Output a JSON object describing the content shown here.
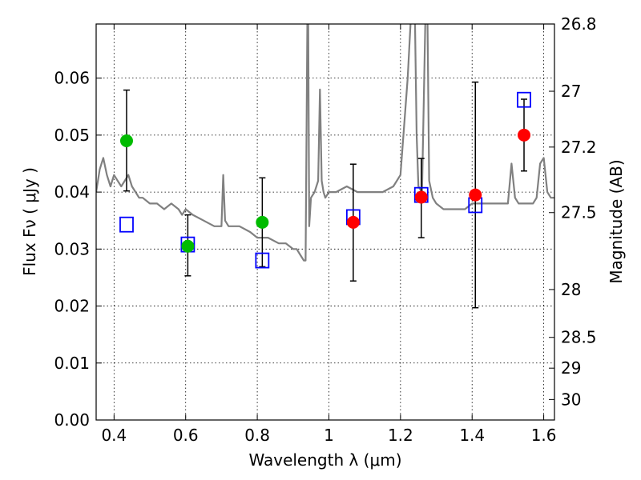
{
  "chart_data": {
    "type": "scatter",
    "title": "",
    "xlabel": "Wavelength  λ (μm)",
    "ylabel": "Flux  Fν  ( μJy )",
    "y2label": "Magnitude (AB)",
    "xlim": [
      0.35,
      1.63
    ],
    "ylim": [
      0.0,
      0.0695
    ],
    "grid": true,
    "x_ticks": [
      0.4,
      0.6,
      0.8,
      1.0,
      1.2,
      1.4,
      1.6
    ],
    "x_tick_labels": [
      "0.4",
      "0.6",
      "0.8",
      "1",
      "1.2",
      "1.4",
      "1.6"
    ],
    "y_ticks": [
      0.0,
      0.01,
      0.02,
      0.03,
      0.04,
      0.05,
      0.06
    ],
    "y_tick_labels": [
      "0.00",
      "0.01",
      "0.02",
      "0.03",
      "0.04",
      "0.05",
      "0.06"
    ],
    "y2_ticks": [
      {
        "label": "26.8",
        "flux": 0.0695
      },
      {
        "label": "27",
        "flux": 0.0577
      },
      {
        "label": "27.2",
        "flux": 0.0479
      },
      {
        "label": "27.5",
        "flux": 0.0364
      },
      {
        "label": "28",
        "flux": 0.0229
      },
      {
        "label": "28.5",
        "flux": 0.0145
      },
      {
        "label": "29",
        "flux": 0.0091
      },
      {
        "label": "30",
        "flux": 0.0036
      }
    ],
    "series": [
      {
        "marker": "circle",
        "color": "#00bb00",
        "points": [
          {
            "x": 0.435,
            "y": 0.049,
            "ylo": 0.0402,
            "yhi": 0.0579
          },
          {
            "x": 0.606,
            "y": 0.0305,
            "ylo": 0.0253,
            "yhi": 0.036
          },
          {
            "x": 0.814,
            "y": 0.0347,
            "ylo": 0.0269,
            "yhi": 0.0425
          }
        ]
      },
      {
        "marker": "circle",
        "color": "#ff0000",
        "points": [
          {
            "x": 1.068,
            "y": 0.0347,
            "ylo": 0.0244,
            "yhi": 0.0449
          },
          {
            "x": 1.258,
            "y": 0.0391,
            "ylo": 0.032,
            "yhi": 0.0459
          },
          {
            "x": 1.409,
            "y": 0.0395,
            "ylo": 0.0197,
            "yhi": 0.0593
          },
          {
            "x": 1.545,
            "y": 0.05,
            "ylo": 0.0437,
            "yhi": 0.0563
          }
        ]
      },
      {
        "marker": "open-square",
        "color": "#0000ff",
        "points": [
          {
            "x": 0.435,
            "y": 0.0343
          },
          {
            "x": 0.606,
            "y": 0.0308
          },
          {
            "x": 0.814,
            "y": 0.028
          },
          {
            "x": 1.068,
            "y": 0.0356
          },
          {
            "x": 1.258,
            "y": 0.0395
          },
          {
            "x": 1.409,
            "y": 0.0377
          },
          {
            "x": 1.545,
            "y": 0.0562
          }
        ]
      },
      {
        "marker": "line",
        "color": "#808080",
        "x": [
          0.35,
          0.36,
          0.37,
          0.38,
          0.39,
          0.4,
          0.41,
          0.42,
          0.43,
          0.44,
          0.45,
          0.46,
          0.47,
          0.48,
          0.5,
          0.52,
          0.54,
          0.56,
          0.58,
          0.59,
          0.6,
          0.62,
          0.65,
          0.68,
          0.7,
          0.705,
          0.71,
          0.72,
          0.75,
          0.78,
          0.8,
          0.83,
          0.86,
          0.88,
          0.9,
          0.91,
          0.92,
          0.93,
          0.935,
          0.94,
          0.942,
          0.945,
          0.95,
          0.96,
          0.97,
          0.975,
          0.98,
          0.985,
          0.99,
          1.0,
          1.02,
          1.05,
          1.08,
          1.1,
          1.12,
          1.15,
          1.18,
          1.2,
          1.22,
          1.23,
          1.24,
          1.245,
          1.25,
          1.26,
          1.27,
          1.275,
          1.28,
          1.29,
          1.3,
          1.32,
          1.35,
          1.38,
          1.4,
          1.42,
          1.45,
          1.48,
          1.5,
          1.51,
          1.52,
          1.53,
          1.55,
          1.57,
          1.58,
          1.59,
          1.6,
          1.61,
          1.62,
          1.63
        ],
        "y": [
          0.04,
          0.044,
          0.046,
          0.043,
          0.041,
          0.043,
          0.042,
          0.041,
          0.042,
          0.043,
          0.041,
          0.04,
          0.039,
          0.039,
          0.038,
          0.038,
          0.037,
          0.038,
          0.037,
          0.036,
          0.037,
          0.036,
          0.035,
          0.034,
          0.034,
          0.043,
          0.035,
          0.034,
          0.034,
          0.033,
          0.032,
          0.032,
          0.031,
          0.031,
          0.03,
          0.03,
          0.029,
          0.028,
          0.028,
          0.072,
          0.072,
          0.034,
          0.039,
          0.04,
          0.042,
          0.058,
          0.042,
          0.04,
          0.039,
          0.04,
          0.04,
          0.041,
          0.04,
          0.04,
          0.04,
          0.04,
          0.041,
          0.043,
          0.06,
          0.072,
          0.072,
          0.05,
          0.041,
          0.04,
          0.072,
          0.072,
          0.042,
          0.039,
          0.038,
          0.037,
          0.037,
          0.037,
          0.038,
          0.038,
          0.038,
          0.038,
          0.038,
          0.045,
          0.039,
          0.038,
          0.038,
          0.038,
          0.039,
          0.045,
          0.046,
          0.04,
          0.039,
          0.039
        ]
      }
    ]
  }
}
